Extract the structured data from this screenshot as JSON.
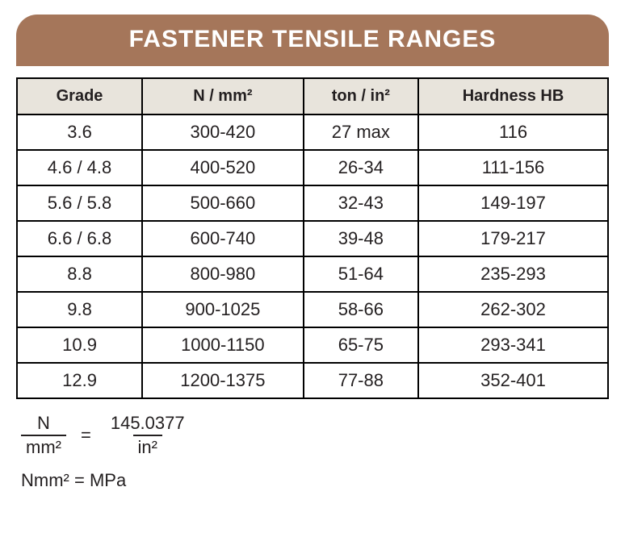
{
  "title": "FASTENER TENSILE RANGES",
  "table": {
    "columns": [
      "Grade",
      "N / mm²",
      "ton / in²",
      "Hardness  HB"
    ],
    "rows": [
      [
        "3.6",
        "300-420",
        "27 max",
        "116"
      ],
      [
        "4.6 / 4.8",
        "400-520",
        "26-34",
        "111-156"
      ],
      [
        "5.6 / 5.8",
        "500-660",
        "32-43",
        "149-197"
      ],
      [
        "6.6 / 6.8",
        "600-740",
        "39-48",
        "179-217"
      ],
      [
        "8.8",
        "800-980",
        "51-64",
        "235-293"
      ],
      [
        "9.8",
        "900-1025",
        "58-66",
        "262-302"
      ],
      [
        "10.9",
        "1000-1150",
        "65-75",
        "293-341"
      ],
      [
        "12.9",
        "1200-1375",
        "77-88",
        "352-401"
      ]
    ],
    "header_bg": "#e8e4dc",
    "border_color": "#000000",
    "text_color": "#231f20",
    "header_fontsize": 20,
    "cell_fontsize": 22
  },
  "formula": {
    "left_num": "N",
    "left_den": "mm²",
    "equals": "=",
    "right_num": "145.0377",
    "right_den": "in²"
  },
  "note": "Nmm² = MPa",
  "colors": {
    "title_bg": "#a5765a",
    "title_text": "#ffffff",
    "page_bg": "#ffffff"
  }
}
